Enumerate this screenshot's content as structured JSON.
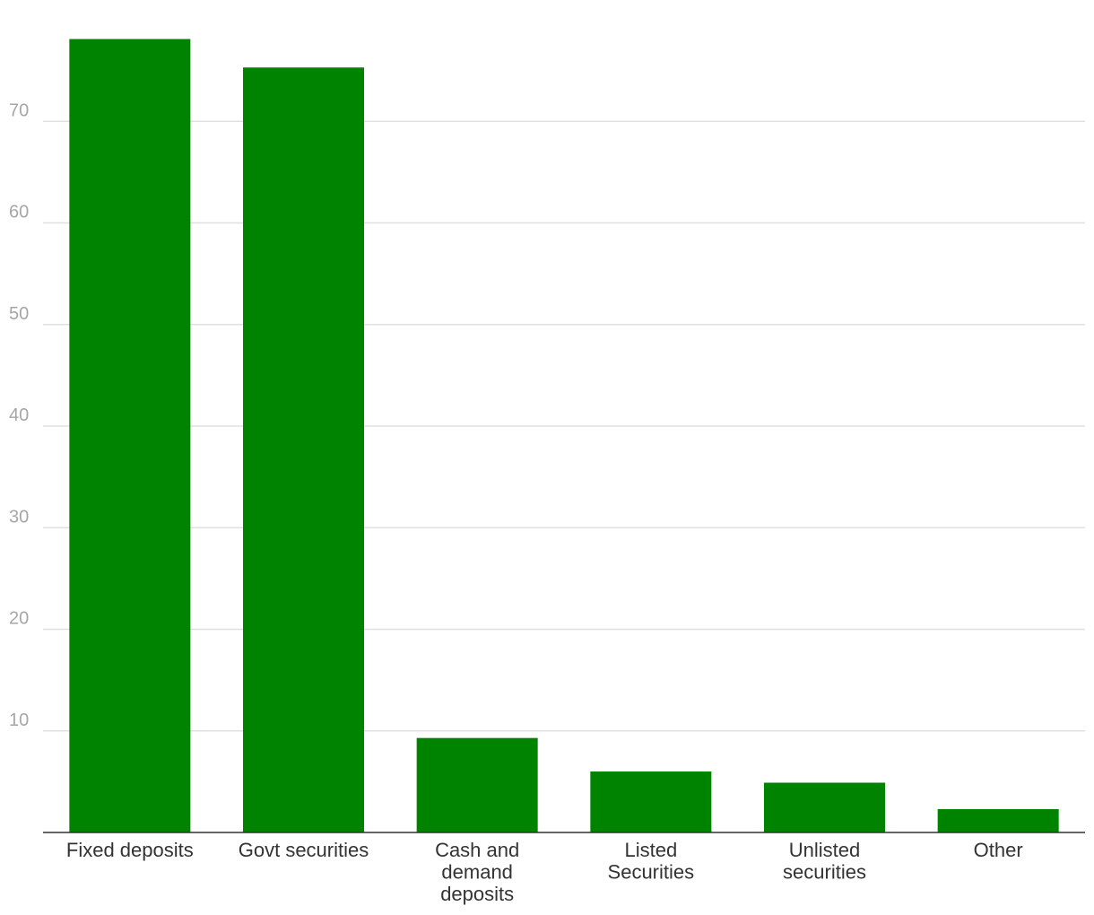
{
  "chart_data": {
    "type": "bar",
    "categories": [
      [
        "Fixed deposits"
      ],
      [
        "Govt securities"
      ],
      [
        "Cash and",
        "demand",
        "deposits"
      ],
      [
        "Listed",
        "Securities"
      ],
      [
        "Unlisted",
        "securities"
      ],
      [
        "Other"
      ]
    ],
    "values": [
      78.1,
      75.3,
      9.3,
      6.0,
      4.9,
      2.3
    ],
    "yticks": [
      10,
      20,
      30,
      40,
      50,
      60,
      70
    ],
    "ylim": [
      0,
      80
    ],
    "grid": true,
    "bar_color": "#008400",
    "grid_color": "#e0e0e0",
    "title": "",
    "xlabel": "",
    "ylabel": ""
  }
}
